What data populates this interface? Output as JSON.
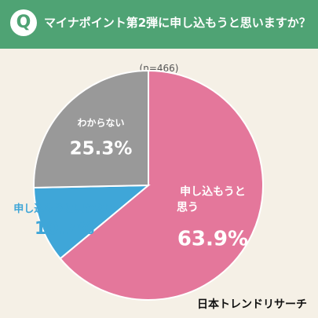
{
  "header": {
    "q_mark": "Q",
    "title": "マイナポイント第2弾に申し込もうと思いますか？"
  },
  "sample_label": "(n=466)",
  "source": "日本トレンドリサーチ",
  "colors": {
    "header": "#4fa374",
    "background": "#f5f0e6",
    "yes": "#e4779b",
    "no": "#3fa6d8",
    "unsure": "#999999"
  },
  "chart_data": {
    "type": "pie",
    "title": "マイナポイント第2弾に申し込もうと思いますか？",
    "subtitle": "(n=466)",
    "slices": [
      {
        "label": "申し込もうと思う",
        "value": 63.9,
        "display": "63.9%",
        "color": "#e4779b"
      },
      {
        "label": "申し込もうと思わない",
        "value": 10.7,
        "display": "10.7%",
        "color": "#3fa6d8"
      },
      {
        "label": "わからない",
        "value": 25.3,
        "display": "25.3%",
        "color": "#999999"
      }
    ]
  }
}
